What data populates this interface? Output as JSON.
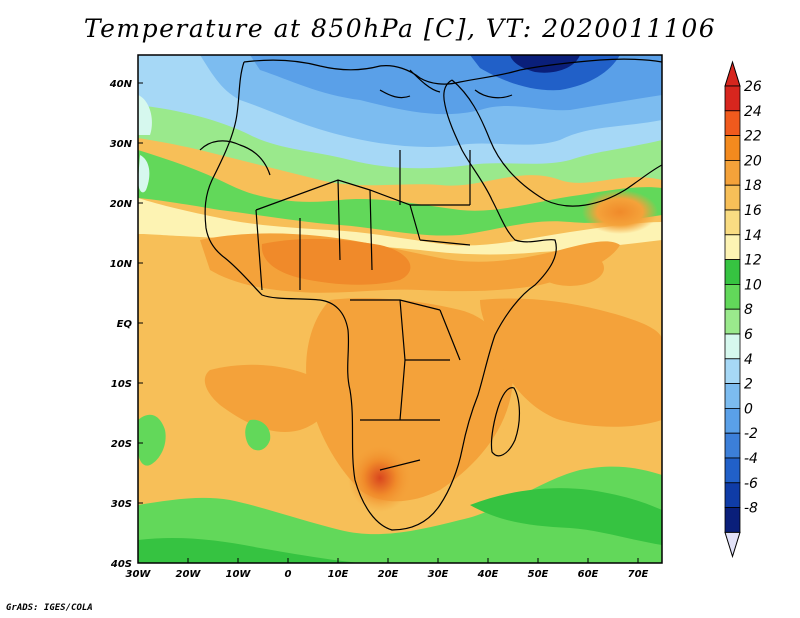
{
  "title": "Temperature at 850hPa [C], VT: 2020011106",
  "credit": "GrADS: IGES/COLA",
  "map": {
    "lat_labels": [
      "40N",
      "30N",
      "20N",
      "10N",
      "EQ",
      "10S",
      "20S",
      "30S",
      "40S"
    ],
    "lon_labels": [
      "30W",
      "20W",
      "10W",
      "0",
      "10E",
      "20E",
      "30E",
      "40E",
      "50E",
      "60E",
      "70E"
    ]
  },
  "colorbar": {
    "labels": [
      "26",
      "24",
      "22",
      "20",
      "18",
      "16",
      "14",
      "12",
      "10",
      "8",
      "6",
      "4",
      "2",
      "0",
      "-2",
      "-4",
      "-6",
      "-8"
    ],
    "colors": [
      "#d7261e",
      "#f05a1d",
      "#f38a1e",
      "#f4a23a",
      "#f7bf58",
      "#f9dc82",
      "#fdf3b3",
      "#36c341",
      "#62d85a",
      "#9ae98c",
      "#d6f8ee",
      "#a6d8f6",
      "#7cbcf0",
      "#5aa0e8",
      "#3c7fd9",
      "#2160c8",
      "#0f3ca7",
      "#0a1f7a"
    ],
    "arrow_top_color": "#d7261e",
    "arrow_bottom_color": "#e2e2f8"
  }
}
